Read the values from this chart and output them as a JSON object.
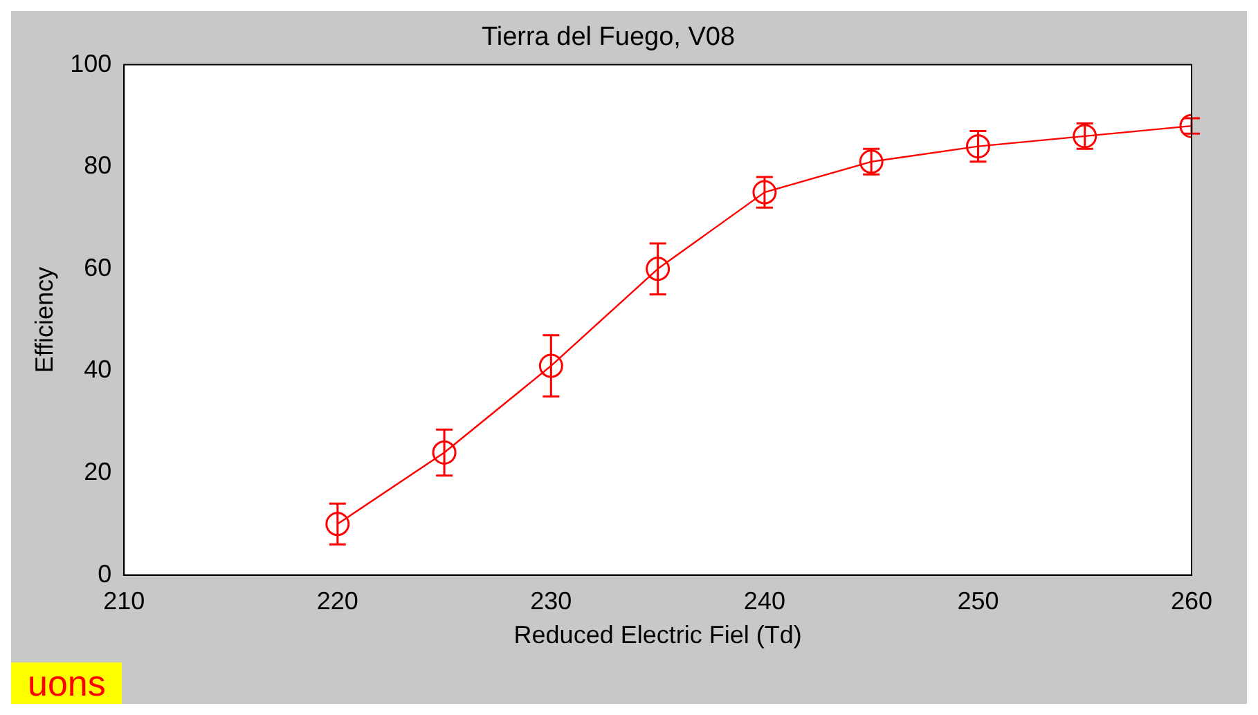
{
  "chart_data": {
    "type": "line",
    "title": "Tierra del Fuego, V08",
    "xlabel": "Reduced Electric Fiel (Td)",
    "ylabel": "Efficiency",
    "x": [
      220,
      225,
      230,
      235,
      240,
      245,
      250,
      255,
      260
    ],
    "series": [
      {
        "color": "#ff0000",
        "values": [
          10,
          24,
          41,
          60,
          75,
          81,
          84,
          86,
          88
        ],
        "errors": [
          4,
          4.5,
          6,
          5,
          3,
          2.5,
          3,
          2.5,
          1.5
        ]
      }
    ],
    "xlim": [
      210,
      260
    ],
    "xticks": [
      210,
      220,
      230,
      240,
      250,
      260
    ],
    "ylim": [
      0,
      100
    ],
    "yticks": [
      0,
      20,
      40,
      60,
      80,
      100
    ],
    "grid": false,
    "legend": false,
    "marker": "circle",
    "line_style": "solid",
    "annotations": [
      "uons"
    ]
  }
}
